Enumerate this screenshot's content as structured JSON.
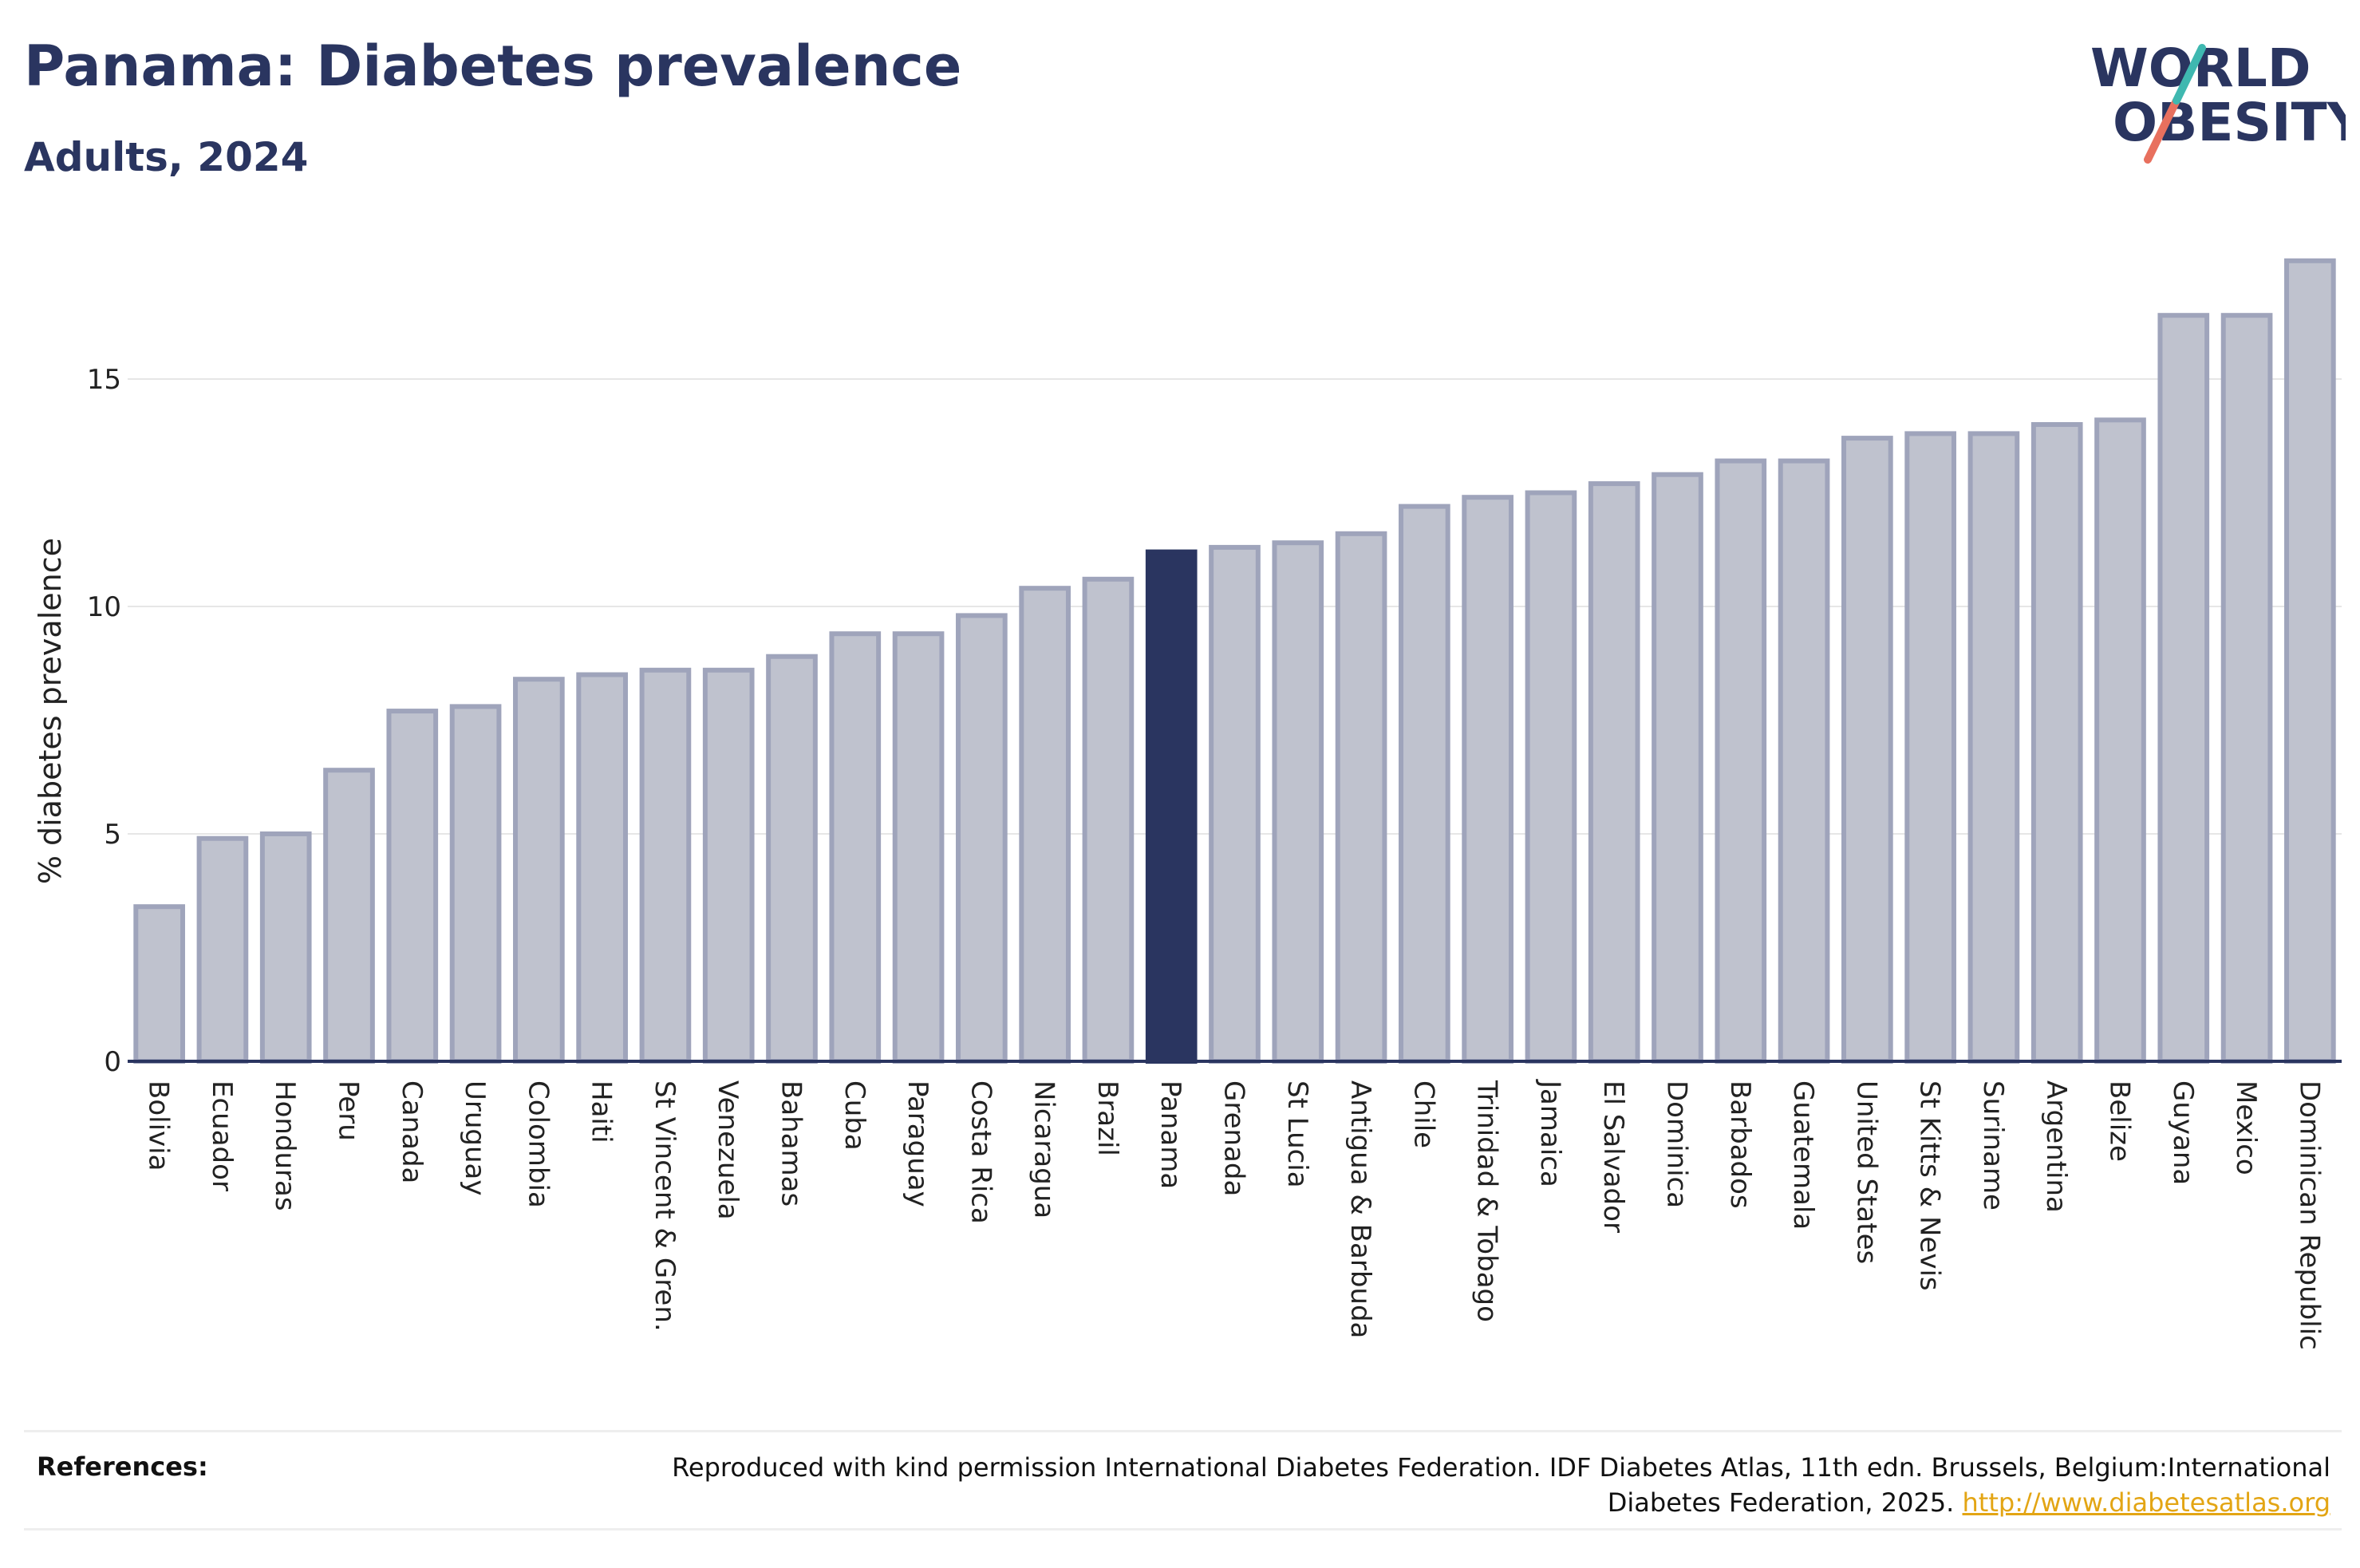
{
  "header": {
    "title": "Panama: Diabetes prevalence",
    "subtitle": "Adults, 2024"
  },
  "logo": {
    "line1": "WORLD",
    "line2": "OBESITY"
  },
  "chart_data": {
    "type": "bar",
    "ylabel": "% diabetes prevalence",
    "ylim": [
      0,
      18
    ],
    "yticks": [
      0,
      5,
      10,
      15
    ],
    "grid": true,
    "highlight": "Panama",
    "colors": {
      "bar": "#bfc2ce",
      "bar_edge": "#9fa4bb",
      "highlight": "#2a3560",
      "axis": "#2a3560",
      "grid": "#e6e6e6"
    },
    "categories": [
      "Bolivia",
      "Ecuador",
      "Honduras",
      "Peru",
      "Canada",
      "Uruguay",
      "Colombia",
      "Haiti",
      "St Vincent & Gren.",
      "Venezuela",
      "Bahamas",
      "Cuba",
      "Paraguay",
      "Costa Rica",
      "Nicaragua",
      "Brazil",
      "Panama",
      "Grenada",
      "St Lucia",
      "Antigua & Barbuda",
      "Chile",
      "Trinidad & Tobago",
      "Jamaica",
      "El Salvador",
      "Dominica",
      "Barbados",
      "Guatemala",
      "United States",
      "St Kitts & Nevis",
      "Suriname",
      "Argentina",
      "Belize",
      "Guyana",
      "Mexico",
      "Dominican Republic"
    ],
    "values": [
      3.4,
      4.9,
      5.0,
      6.4,
      7.7,
      7.8,
      8.4,
      8.5,
      8.6,
      8.6,
      8.9,
      9.4,
      9.4,
      9.8,
      10.4,
      10.6,
      11.2,
      11.3,
      11.4,
      11.6,
      12.2,
      12.4,
      12.5,
      12.7,
      12.9,
      13.2,
      13.2,
      13.7,
      13.8,
      13.8,
      14.0,
      14.1,
      16.4,
      16.4,
      17.6
    ]
  },
  "references": {
    "label": "References:",
    "text": "Reproduced with kind permission International Diabetes Federation. IDF Diabetes Atlas, 11th edn. Brussels, Belgium:International Diabetes Federation, 2025.",
    "link": "http://www.diabetesatlas.org"
  }
}
